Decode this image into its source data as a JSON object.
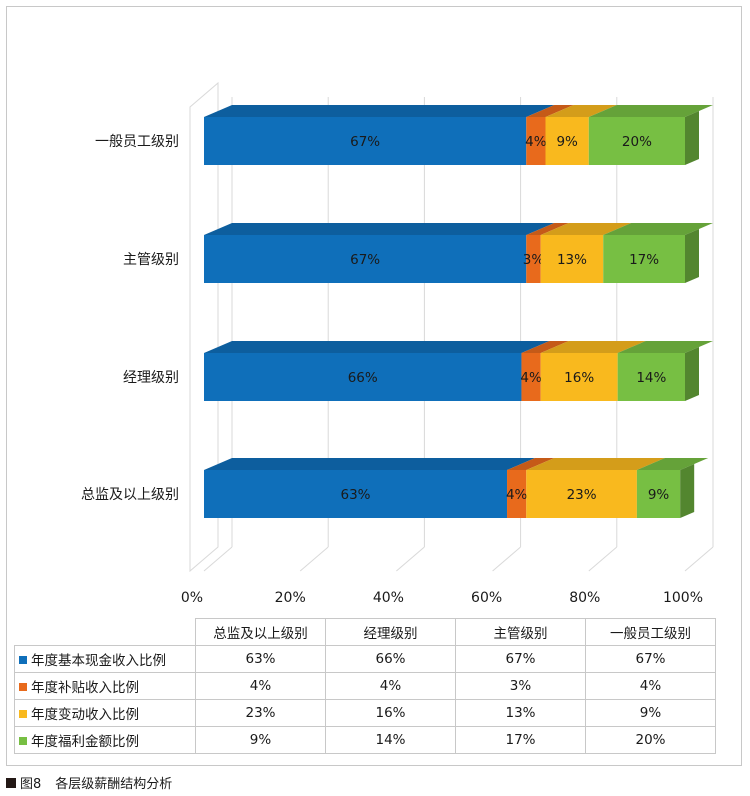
{
  "chart_data": {
    "type": "bar",
    "orientation": "horizontal",
    "stacked": "percent",
    "style": "3d",
    "categories": [
      "总监及以上级别",
      "经理级别",
      "主管级别",
      "一般员工级别"
    ],
    "series": [
      {
        "name": "年度基本现金收入比例",
        "color": "#0f6fba",
        "values": [
          63,
          66,
          67,
          67
        ],
        "labels": [
          "63%",
          "66%",
          "67%",
          "67%"
        ]
      },
      {
        "name": "年度补贴收入比例",
        "color": "#e86a1c",
        "values": [
          4,
          4,
          3,
          4
        ],
        "labels": [
          "4%",
          "4%",
          "3%",
          "4%"
        ]
      },
      {
        "name": "年度变动收入比例",
        "color": "#f9b91e",
        "values": [
          23,
          16,
          13,
          9
        ],
        "labels": [
          "23%",
          "16%",
          "13%",
          "9%"
        ]
      },
      {
        "name": "年度福利金额比例",
        "color": "#77bf43",
        "values": [
          9,
          14,
          17,
          20
        ],
        "labels": [
          "9%",
          "14%",
          "17%",
          "20%"
        ]
      }
    ],
    "x_ticks": [
      "0%",
      "20%",
      "40%",
      "60%",
      "80%",
      "100%"
    ],
    "xlim": [
      0,
      100
    ],
    "grid": true,
    "legend": "data-table-below"
  },
  "caption": {
    "figure": "图8",
    "title": "各层级薪酬结构分析"
  }
}
